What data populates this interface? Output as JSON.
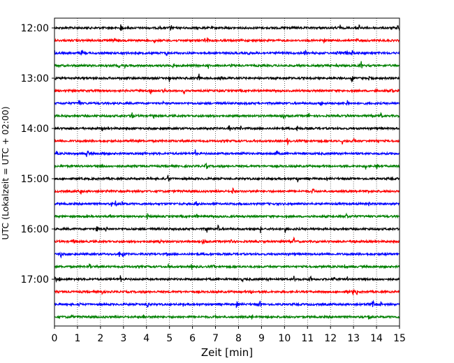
{
  "chart_data": {
    "type": "line",
    "title": "",
    "xlabel": "Zeit  [min]",
    "ylabel": "UTC (Lokalzeit = UTC + 02:00)",
    "xlim": [
      0,
      15
    ],
    "x_ticks": [
      "0",
      "1",
      "2",
      "3",
      "4",
      "5",
      "6",
      "7",
      "8",
      "9",
      "10",
      "11",
      "12",
      "13",
      "14",
      "15"
    ],
    "y_ticks": [
      "12:00",
      "13:00",
      "14:00",
      "15:00",
      "16:00",
      "17:00"
    ],
    "grid": "vertical dotted at each minute",
    "trace_colors": [
      "#000000",
      "#ff0000",
      "#0000ff",
      "#008000"
    ],
    "series": [
      {
        "start": "12:00"
      },
      {
        "start": "12:15"
      },
      {
        "start": "12:30"
      },
      {
        "start": "12:45"
      },
      {
        "start": "13:00"
      },
      {
        "start": "13:15"
      },
      {
        "start": "13:30"
      },
      {
        "start": "13:45"
      },
      {
        "start": "14:00"
      },
      {
        "start": "14:15"
      },
      {
        "start": "14:30"
      },
      {
        "start": "14:45"
      },
      {
        "start": "15:00"
      },
      {
        "start": "15:15"
      },
      {
        "start": "15:30"
      },
      {
        "start": "15:45"
      },
      {
        "start": "16:00"
      },
      {
        "start": "16:15"
      },
      {
        "start": "16:30"
      },
      {
        "start": "16:45"
      },
      {
        "start": "17:00"
      },
      {
        "start": "17:15"
      },
      {
        "start": "17:30"
      },
      {
        "start": "17:45"
      }
    ]
  }
}
